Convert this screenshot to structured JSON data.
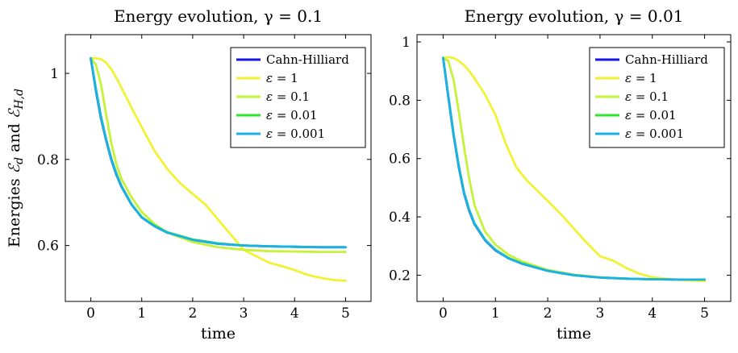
{
  "chart_data": [
    {
      "type": "line",
      "title": "Energy evolution, γ = 0.1",
      "xlabel": "time",
      "ylabel": "Energies ℰ_d and ℰ_{H,d}",
      "ylabel_main": "Energies ",
      "ylabel_sym1": "ℰ",
      "ylabel_sub1": "d",
      "ylabel_and": " and ",
      "ylabel_sym2": "ℰ",
      "ylabel_sub2": "H,d",
      "xlim": [
        -0.5,
        5.5
      ],
      "ylim": [
        0.47,
        1.09
      ],
      "xticks": [
        0,
        1,
        2,
        3,
        4,
        5
      ],
      "xtick_labels": [
        "0",
        "1",
        "2",
        "3",
        "4",
        "5"
      ],
      "yticks": [
        0.6,
        0.8,
        1.0
      ],
      "ytick_labels": [
        "0.6",
        "0.8",
        "1"
      ],
      "grid": false,
      "legend_position": "top-right",
      "series": [
        {
          "name": "Cahn-Hilliard",
          "color": "#1515e6",
          "x": [
            0,
            0.1,
            0.2,
            0.3,
            0.4,
            0.5,
            0.6,
            0.8,
            1.0,
            1.25,
            1.5,
            2.0,
            2.5,
            3.0,
            3.5,
            4.0,
            4.5,
            5.0
          ],
          "y": [
            1.035,
            0.96,
            0.895,
            0.845,
            0.8,
            0.765,
            0.737,
            0.695,
            0.665,
            0.645,
            0.63,
            0.613,
            0.604,
            0.6,
            0.598,
            0.597,
            0.596,
            0.596
          ]
        },
        {
          "name": "ε = 1",
          "color": "#f2f235",
          "x": [
            0,
            0.1,
            0.2,
            0.3,
            0.4,
            0.5,
            0.6,
            0.8,
            1.0,
            1.25,
            1.5,
            1.75,
            2.0,
            2.25,
            2.5,
            2.75,
            3.0,
            3.25,
            3.5,
            3.75,
            4.0,
            4.25,
            4.5,
            4.75,
            5.0
          ],
          "y": [
            1.035,
            1.035,
            1.033,
            1.025,
            1.01,
            0.99,
            0.967,
            0.92,
            0.875,
            0.82,
            0.778,
            0.745,
            0.72,
            0.695,
            0.66,
            0.625,
            0.59,
            0.575,
            0.56,
            0.552,
            0.543,
            0.532,
            0.525,
            0.52,
            0.518
          ]
        },
        {
          "name": "ε = 0.1",
          "color": "#c6f23a",
          "x": [
            0,
            0.1,
            0.2,
            0.3,
            0.4,
            0.5,
            0.6,
            0.8,
            1.0,
            1.25,
            1.5,
            2.0,
            2.5,
            3.0,
            3.5,
            4.0,
            4.5,
            5.0
          ],
          "y": [
            1.035,
            1.02,
            0.975,
            0.905,
            0.84,
            0.79,
            0.755,
            0.712,
            0.678,
            0.65,
            0.63,
            0.608,
            0.596,
            0.59,
            0.587,
            0.586,
            0.585,
            0.585
          ]
        },
        {
          "name": "ε = 0.01",
          "color": "#2fe62f",
          "x": [
            0,
            0.1,
            0.2,
            0.3,
            0.4,
            0.5,
            0.6,
            0.8,
            1.0,
            1.25,
            1.5,
            2.0,
            2.5,
            3.0,
            3.5,
            4.0,
            4.5,
            5.0
          ],
          "y": [
            1.035,
            0.965,
            0.9,
            0.848,
            0.803,
            0.768,
            0.739,
            0.696,
            0.666,
            0.646,
            0.631,
            0.614,
            0.605,
            0.6,
            0.598,
            0.597,
            0.596,
            0.596
          ]
        },
        {
          "name": "ε = 0.001",
          "color": "#1ab2e6",
          "x": [
            0,
            0.1,
            0.2,
            0.3,
            0.4,
            0.5,
            0.6,
            0.8,
            1.0,
            1.25,
            1.5,
            2.0,
            2.5,
            3.0,
            3.5,
            4.0,
            4.5,
            5.0
          ],
          "y": [
            1.035,
            0.962,
            0.897,
            0.846,
            0.801,
            0.766,
            0.738,
            0.695,
            0.665,
            0.645,
            0.63,
            0.613,
            0.604,
            0.6,
            0.598,
            0.597,
            0.596,
            0.596
          ]
        }
      ]
    },
    {
      "type": "line",
      "title": "Energy evolution, γ = 0.01",
      "xlabel": "time",
      "ylabel": "",
      "xlim": [
        -0.5,
        5.5
      ],
      "ylim": [
        0.11,
        1.025
      ],
      "xticks": [
        0,
        1,
        2,
        3,
        4,
        5
      ],
      "xtick_labels": [
        "0",
        "1",
        "2",
        "3",
        "4",
        "5"
      ],
      "yticks": [
        0.2,
        0.4,
        0.6,
        0.8,
        1.0
      ],
      "ytick_labels": [
        "0.2",
        "0.4",
        "0.6",
        "0.8",
        "1"
      ],
      "grid": false,
      "legend_position": "top-right",
      "series": [
        {
          "name": "Cahn-Hilliard",
          "color": "#1515e6",
          "x": [
            0,
            0.1,
            0.2,
            0.3,
            0.4,
            0.5,
            0.6,
            0.8,
            1.0,
            1.25,
            1.5,
            2.0,
            2.5,
            3.0,
            3.5,
            4.0,
            4.5,
            5.0
          ],
          "y": [
            0.945,
            0.81,
            0.68,
            0.57,
            0.48,
            0.42,
            0.375,
            0.32,
            0.285,
            0.258,
            0.24,
            0.215,
            0.2,
            0.192,
            0.188,
            0.186,
            0.185,
            0.185
          ]
        },
        {
          "name": "ε = 1",
          "color": "#f2f235",
          "x": [
            0,
            0.1,
            0.2,
            0.3,
            0.4,
            0.5,
            0.6,
            0.8,
            1.0,
            1.2,
            1.4,
            1.6,
            1.8,
            2.0,
            2.25,
            2.5,
            2.75,
            3.0,
            3.25,
            3.5,
            3.75,
            4.0,
            4.5,
            5.0
          ],
          "y": [
            0.945,
            0.948,
            0.945,
            0.935,
            0.92,
            0.9,
            0.875,
            0.82,
            0.75,
            0.65,
            0.57,
            0.525,
            0.49,
            0.455,
            0.41,
            0.36,
            0.31,
            0.265,
            0.25,
            0.225,
            0.205,
            0.193,
            0.184,
            0.18
          ]
        },
        {
          "name": "ε = 0.1",
          "color": "#c6f23a",
          "x": [
            0,
            0.1,
            0.2,
            0.3,
            0.4,
            0.5,
            0.6,
            0.8,
            1.0,
            1.25,
            1.5,
            2.0,
            2.5,
            3.0,
            3.5,
            4.0,
            4.5,
            5.0
          ],
          "y": [
            0.945,
            0.935,
            0.87,
            0.76,
            0.64,
            0.53,
            0.44,
            0.35,
            0.305,
            0.27,
            0.248,
            0.218,
            0.202,
            0.193,
            0.188,
            0.186,
            0.185,
            0.185
          ]
        },
        {
          "name": "ε = 0.01",
          "color": "#2fe62f",
          "x": [
            0,
            0.1,
            0.2,
            0.3,
            0.4,
            0.5,
            0.6,
            0.8,
            1.0,
            1.25,
            1.5,
            2.0,
            2.5,
            3.0,
            3.5,
            4.0,
            4.5,
            5.0
          ],
          "y": [
            0.945,
            0.815,
            0.685,
            0.575,
            0.485,
            0.424,
            0.378,
            0.322,
            0.287,
            0.259,
            0.241,
            0.215,
            0.2,
            0.192,
            0.188,
            0.186,
            0.185,
            0.185
          ]
        },
        {
          "name": "ε = 0.001",
          "color": "#1ab2e6",
          "x": [
            0,
            0.1,
            0.2,
            0.3,
            0.4,
            0.5,
            0.6,
            0.8,
            1.0,
            1.25,
            1.5,
            2.0,
            2.5,
            3.0,
            3.5,
            4.0,
            4.5,
            5.0
          ],
          "y": [
            0.945,
            0.812,
            0.682,
            0.572,
            0.482,
            0.422,
            0.376,
            0.321,
            0.286,
            0.258,
            0.24,
            0.215,
            0.2,
            0.192,
            0.188,
            0.186,
            0.185,
            0.185
          ]
        }
      ]
    }
  ]
}
